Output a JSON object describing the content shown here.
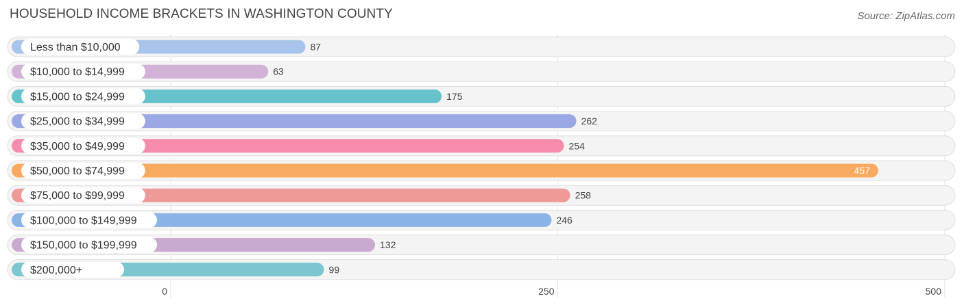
{
  "header": {
    "title": "HOUSEHOLD INCOME BRACKETS IN WASHINGTON COUNTY",
    "source": "Source: ZipAtlas.com"
  },
  "chart_data": {
    "type": "bar",
    "orientation": "horizontal",
    "title": "HOUSEHOLD INCOME BRACKETS IN WASHINGTON COUNTY",
    "xlabel": "",
    "ylabel": "",
    "xlim": [
      0,
      500
    ],
    "ticks": [
      "0",
      "250",
      "500"
    ],
    "tick_values": [
      0,
      250,
      500
    ],
    "grid": true,
    "categories": [
      "Less than $10,000",
      "$10,000 to $14,999",
      "$15,000 to $24,999",
      "$25,000 to $34,999",
      "$35,000 to $49,999",
      "$50,000 to $74,999",
      "$75,000 to $99,999",
      "$100,000 to $149,999",
      "$150,000 to $199,999",
      "$200,000+"
    ],
    "values": [
      87,
      63,
      175,
      262,
      254,
      457,
      258,
      246,
      132,
      99
    ],
    "colors": [
      "#a9c4ea",
      "#d2b2d6",
      "#67c3cb",
      "#9ca8e4",
      "#f68bab",
      "#f8aa60",
      "#ee9a97",
      "#8bb4e6",
      "#c9a9d0",
      "#7cc7cf"
    ]
  }
}
